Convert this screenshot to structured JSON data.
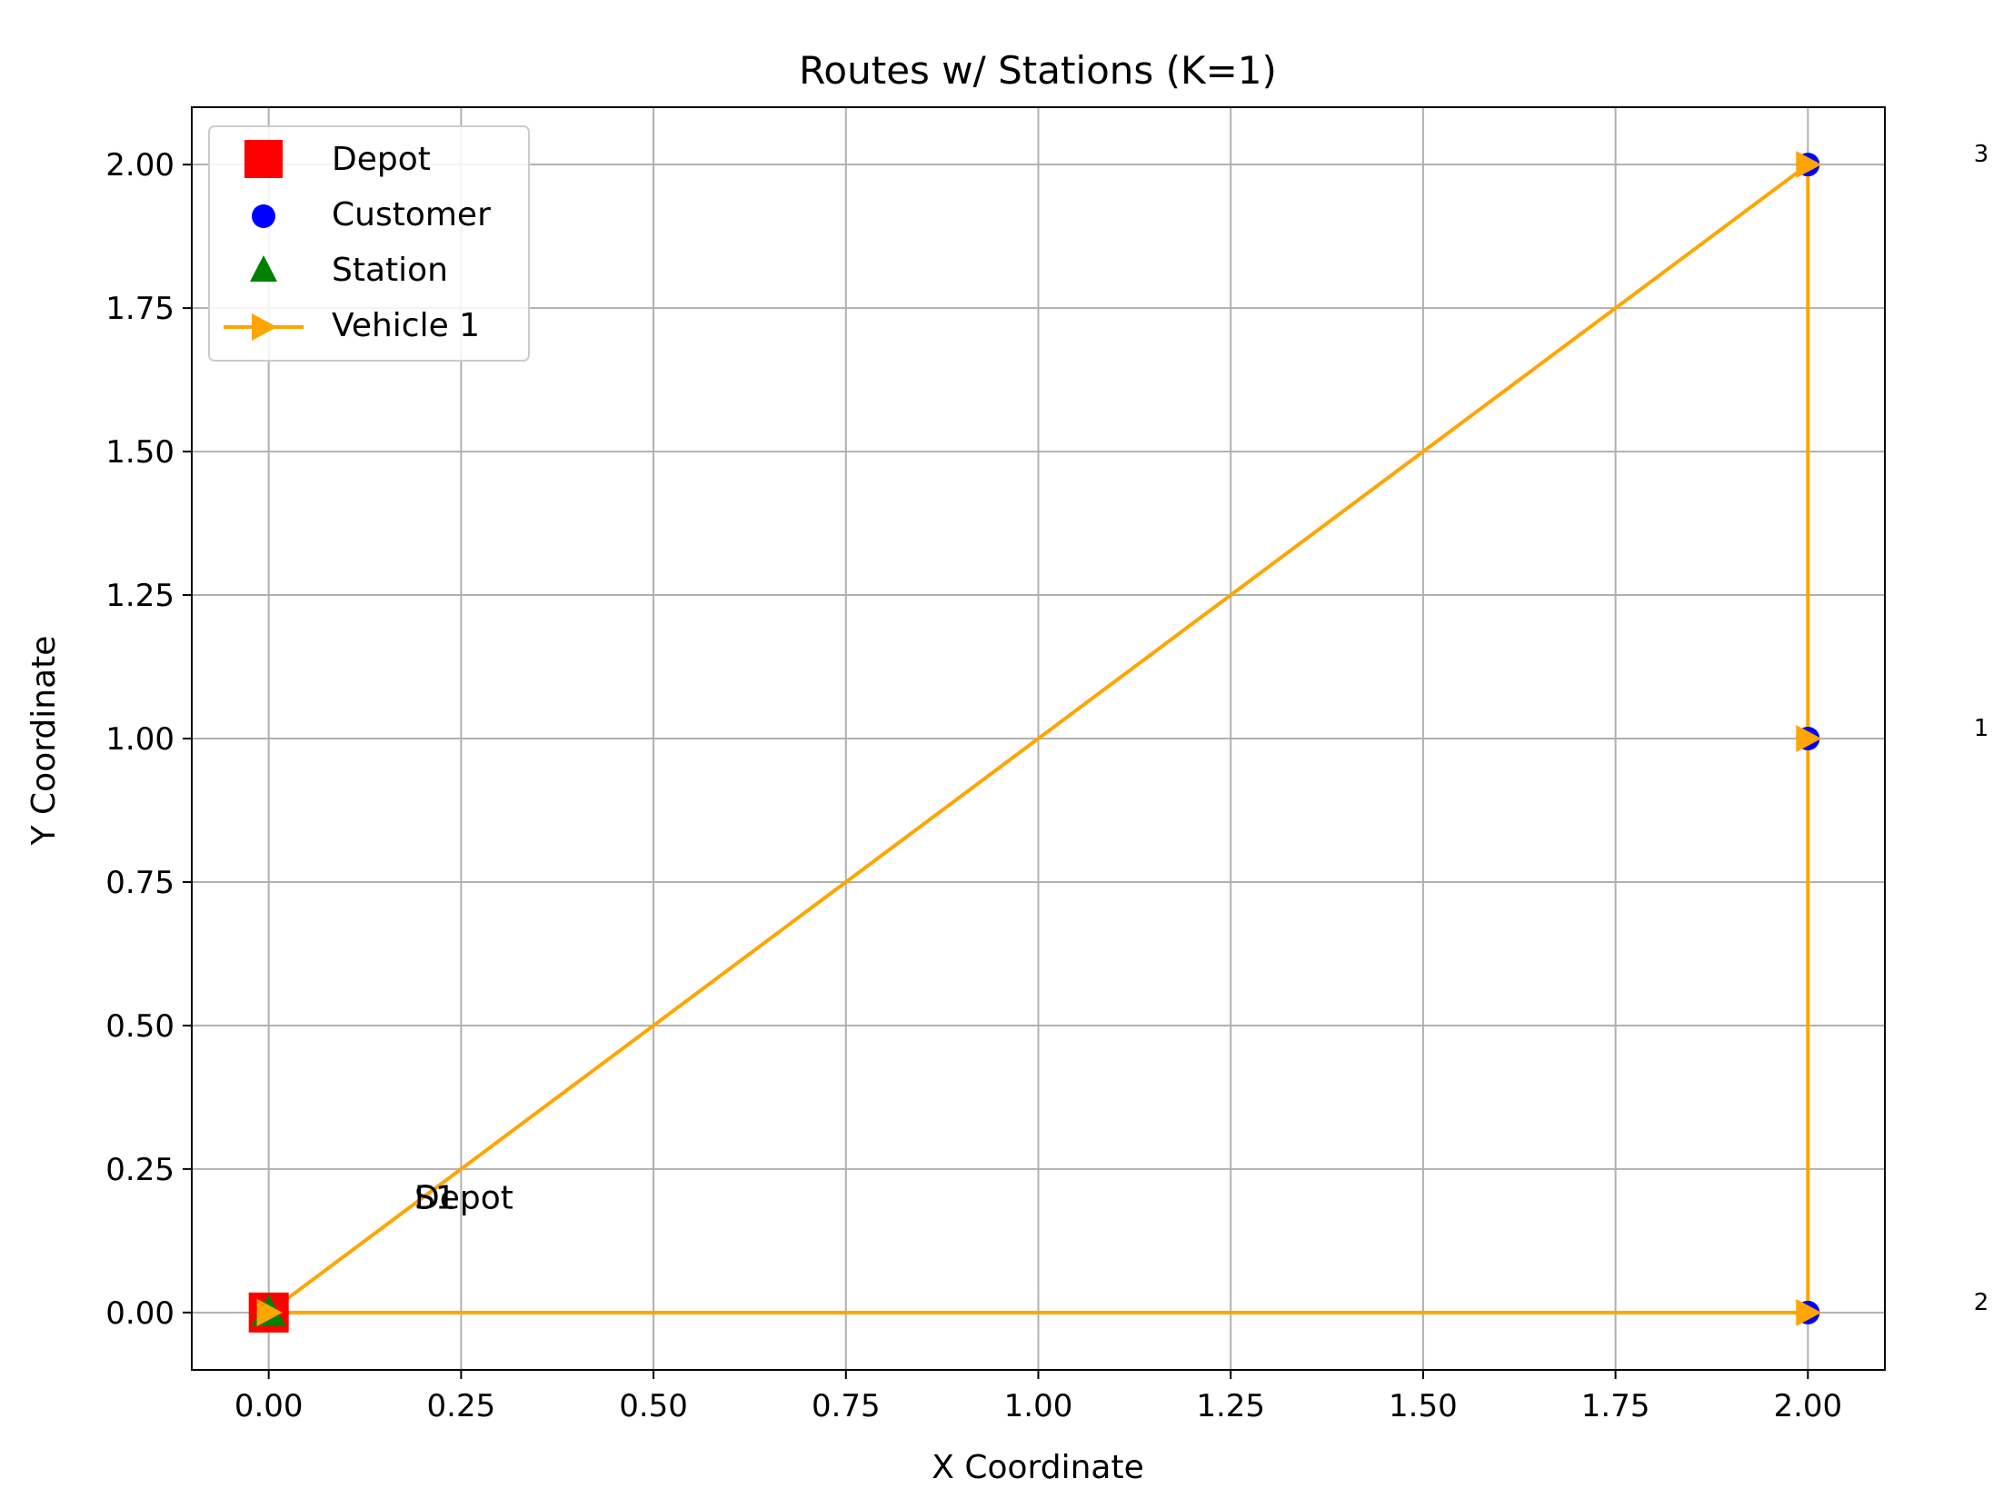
{
  "chart_data": {
    "type": "scatter",
    "title": "Routes w/ Stations (K=1)",
    "xlabel": "X Coordinate",
    "ylabel": "Y Coordinate",
    "xlim": [
      -0.1,
      2.1
    ],
    "ylim": [
      -0.1,
      2.1
    ],
    "xticks": [
      "0.00",
      "0.25",
      "0.50",
      "0.75",
      "1.00",
      "1.25",
      "1.50",
      "1.75",
      "2.00"
    ],
    "yticks": [
      "0.00",
      "0.25",
      "0.50",
      "0.75",
      "1.00",
      "1.25",
      "1.50",
      "1.75",
      "2.00"
    ],
    "grid": true,
    "legend": {
      "placement": "upper-left",
      "entries": [
        {
          "label": "Depot",
          "marker": "square",
          "color": "#ff0000"
        },
        {
          "label": "Customer",
          "marker": "circle",
          "color": "#0000ff"
        },
        {
          "label": "Station",
          "marker": "triangle",
          "color": "#008000"
        },
        {
          "label": "Vehicle 1",
          "marker": "line-triangle-right",
          "color": "#ffa500"
        }
      ]
    },
    "depot": {
      "x": 0,
      "y": 0,
      "color": "#ff0000"
    },
    "customers": [
      {
        "x": 2,
        "y": 2,
        "label": "3"
      },
      {
        "x": 2,
        "y": 1,
        "label": "1"
      },
      {
        "x": 2,
        "y": 0,
        "label": "2"
      }
    ],
    "customer_color": "#0000ff",
    "stations": [
      {
        "x": 0,
        "y": 0
      }
    ],
    "station_color": "#008000",
    "annotations": [
      {
        "text": "S1",
        "x": 0.2,
        "y": 0.2
      },
      {
        "text": "Depot",
        "x": 0.2,
        "y": 0.2
      }
    ],
    "series": [
      {
        "name": "Vehicle 1",
        "color": "#ffa500",
        "x": [
          0,
          2,
          2,
          2,
          0
        ],
        "y": [
          0,
          0,
          1,
          2,
          0
        ]
      }
    ]
  }
}
